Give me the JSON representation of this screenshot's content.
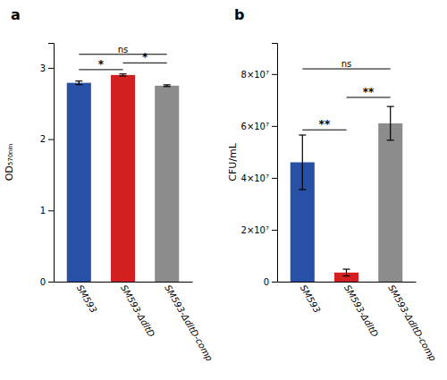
{
  "chart_data": [
    {
      "type": "bar",
      "title": "a",
      "categories": [
        "SM593",
        "SM593-ΔdltD",
        "SM593-ΔdltD-comp"
      ],
      "values": [
        2.79,
        2.9,
        2.75
      ],
      "errors": [
        0.025,
        0.015,
        0.012
      ],
      "colors": [
        "#2651a6",
        "#d42020",
        "#8c8c8c"
      ],
      "y_label": "OD₅₇₀ₙₘ",
      "ylim": [
        0,
        3.35
      ],
      "yticks": [
        0,
        1,
        2,
        3
      ],
      "annotations": [
        {
          "from": "SM593",
          "to": "SM593-ΔdltD",
          "y": 2.975,
          "text": "*"
        },
        {
          "from": "SM593-ΔdltD",
          "to": "SM593-ΔdltD-comp",
          "y": 3.07,
          "text": "*"
        },
        {
          "from": "SM593",
          "to": "SM593-ΔdltD-comp",
          "y": 3.19,
          "text": "ns"
        }
      ]
    },
    {
      "type": "bar",
      "title": "b",
      "categories": [
        "SM593",
        "SM593-ΔdltD",
        "SM593-ΔdltD-comp"
      ],
      "values": [
        46000000,
        3500000,
        61000000
      ],
      "errors": [
        10500000,
        1300000,
        6500000
      ],
      "colors": [
        "#2651a6",
        "#d42020",
        "#8c8c8c"
      ],
      "y_label": "CFU/mL",
      "ylim": [
        0,
        92000000
      ],
      "yticks": [
        0,
        {
          "value": 20000000,
          "label": "2×10⁷"
        },
        {
          "value": 40000000,
          "label": "4×10⁷"
        },
        {
          "value": 60000000,
          "label": "6×10⁷"
        },
        {
          "value": 80000000,
          "label": "8×10⁷"
        }
      ],
      "annotations": [
        {
          "from": "SM593",
          "to": "SM593-ΔdltD",
          "y": 58500000,
          "text": "**"
        },
        {
          "from": "SM593-ΔdltD",
          "to": "SM593-ΔdltD-comp",
          "y": 71000000,
          "text": "**"
        },
        {
          "from": "SM593",
          "to": "SM593-ΔdltD-comp",
          "y": 82000000,
          "text": "ns"
        }
      ]
    }
  ]
}
